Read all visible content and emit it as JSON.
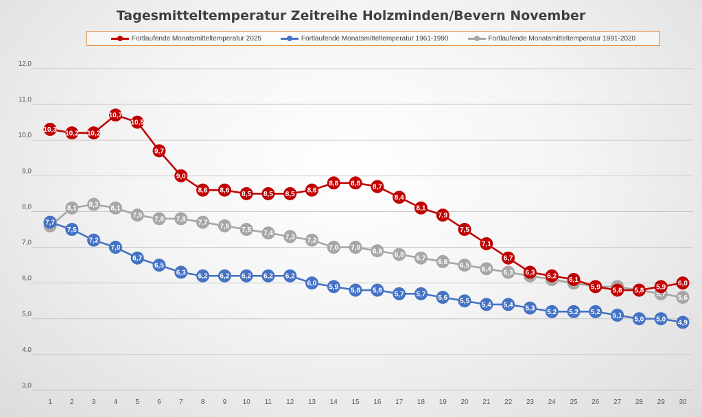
{
  "chart_data": {
    "type": "line",
    "title": "Tagesmitteltemperatur Zeitreihe Holzminden/Bevern November",
    "xlabel": "",
    "ylabel": "",
    "ylim": [
      3.0,
      12.0
    ],
    "y_ticks": [
      "3,0",
      "4,0",
      "5,0",
      "6,0",
      "7,0",
      "8,0",
      "9,0",
      "10,0",
      "11,0",
      "12,0"
    ],
    "categories": [
      "1",
      "2",
      "3",
      "4",
      "5",
      "6",
      "7",
      "8",
      "9",
      "10",
      "11",
      "12",
      "13",
      "14",
      "15",
      "16",
      "17",
      "18",
      "19",
      "20",
      "21",
      "22",
      "23",
      "24",
      "25",
      "26",
      "27",
      "28",
      "29",
      "30"
    ],
    "legend_position": "top",
    "grid": true,
    "series": [
      {
        "name": "Fortlaufende Monatsmitteltemperatur 1991-2020",
        "color": "#a6a6a6",
        "values": [
          7.6,
          8.1,
          8.2,
          8.1,
          7.9,
          7.8,
          7.8,
          7.7,
          7.6,
          7.5,
          7.4,
          7.3,
          7.2,
          7.0,
          7.0,
          6.9,
          6.8,
          6.7,
          6.6,
          6.5,
          6.4,
          6.3,
          6.2,
          6.1,
          6.0,
          5.9,
          5.9,
          5.8,
          5.7,
          5.6
        ],
        "labels": [
          "7,6",
          "8,1",
          "8,2",
          "8,1",
          "7,9",
          "7,8",
          "7,8",
          "7,7",
          "7,6",
          "7,5",
          "7,4",
          "7,3",
          "7,2",
          "7,0",
          "7,0",
          "6,9",
          "6,8",
          "6,7",
          "6,6",
          "6,5",
          "6,4",
          "6,3",
          "6,2",
          "6,1",
          "6,0",
          "5,9",
          "5,9",
          "5,8",
          "5,7",
          "5,6"
        ]
      },
      {
        "name": "Fortlaufende Monatsmitteltemperatur 1961-1990",
        "color": "#4472c4",
        "values": [
          7.7,
          7.5,
          7.2,
          7.0,
          6.7,
          6.5,
          6.3,
          6.2,
          6.2,
          6.2,
          6.2,
          6.2,
          6.0,
          5.9,
          5.8,
          5.8,
          5.7,
          5.7,
          5.6,
          5.5,
          5.4,
          5.4,
          5.3,
          5.2,
          5.2,
          5.2,
          5.1,
          5.0,
          5.0,
          4.9
        ],
        "labels": [
          "7,7",
          "7,5",
          "7,2",
          "7,0",
          "6,7",
          "6,5",
          "6,3",
          "6,2",
          "6,2",
          "6,2",
          "6,2",
          "6,2",
          "6,0",
          "5,9",
          "5,8",
          "5,8",
          "5,7",
          "5,7",
          "5,6",
          "5,5",
          "5,4",
          "5,4",
          "5,3",
          "5,2",
          "5,2",
          "5,2",
          "5,1",
          "5,0",
          "5,0",
          "4,9"
        ]
      },
      {
        "name": "Fortlaufende Monatsmitteltemperatur 2025",
        "color": "#c00000",
        "values": [
          10.3,
          10.2,
          10.2,
          10.7,
          10.5,
          9.7,
          9.0,
          8.6,
          8.6,
          8.5,
          8.5,
          8.5,
          8.6,
          8.8,
          8.8,
          8.7,
          8.4,
          8.1,
          7.9,
          7.5,
          7.1,
          6.7,
          6.3,
          6.2,
          6.1,
          5.9,
          5.8,
          5.8,
          5.9,
          6.0
        ],
        "labels": [
          "10,3",
          "10,2",
          "10,2",
          "10,7",
          "10,5",
          "9,7",
          "9,0",
          "8,6",
          "8,6",
          "8,5",
          "8,5",
          "8,5",
          "8,6",
          "8,8",
          "8,8",
          "8,7",
          "8,4",
          "8,1",
          "7,9",
          "7,5",
          "7,1",
          "6,7",
          "6,3",
          "6,2",
          "6,1",
          "5,9",
          "5,8",
          "5,8",
          "5,9",
          "6,0"
        ]
      }
    ],
    "legend_order": [
      2,
      1,
      0
    ]
  }
}
